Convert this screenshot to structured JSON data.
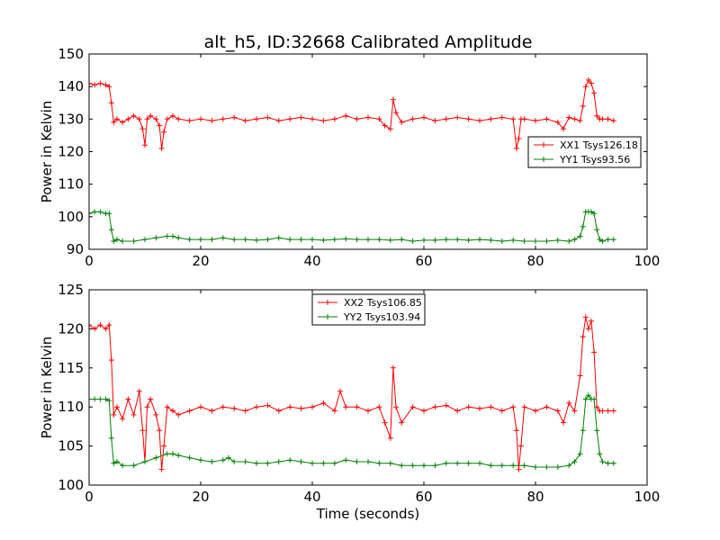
{
  "title": "alt_h5, ID:32668 Calibrated Amplitude",
  "chart_data": [
    {
      "type": "line",
      "title": "alt_h5, ID:32668 Calibrated Amplitude",
      "xlabel": "",
      "ylabel": "Power in Kelvin",
      "xlim": [
        0,
        100
      ],
      "ylim": [
        90,
        150
      ],
      "xticks": [
        0,
        20,
        40,
        60,
        80,
        100
      ],
      "yticks": [
        90,
        100,
        110,
        120,
        130,
        140,
        150
      ],
      "grid": false,
      "legend_position": "center-right",
      "marker": "+",
      "series": [
        {
          "name": "XX1 Tsys126.18",
          "color": "#ff0000",
          "x": [
            0,
            1,
            2,
            3,
            3.6,
            4,
            4.4,
            5,
            6,
            7,
            8,
            9,
            9.6,
            10,
            10.4,
            11,
            12,
            12.6,
            13,
            13.4,
            14,
            15,
            16,
            18,
            20,
            22,
            24,
            26,
            28,
            30,
            32,
            34,
            36,
            38,
            40,
            42,
            44,
            46,
            48,
            50,
            52,
            53,
            54,
            54.5,
            55,
            56,
            58,
            60,
            62,
            64,
            66,
            68,
            70,
            72,
            74,
            76,
            76.6,
            77,
            77.4,
            78,
            80,
            82,
            84,
            85,
            86,
            87,
            88,
            88.5,
            89,
            89.5,
            90,
            90.5,
            91,
            91.5,
            92,
            93,
            94
          ],
          "values": [
            141,
            140.5,
            141,
            140.5,
            140,
            135,
            129,
            130,
            129,
            130,
            131,
            130,
            127,
            122,
            130,
            131,
            130,
            128,
            121,
            126,
            130,
            131,
            130,
            129.5,
            130,
            129.5,
            130,
            130.5,
            129.5,
            130,
            130.5,
            129.5,
            130,
            130.5,
            130,
            129.5,
            130,
            131,
            130,
            130.5,
            130,
            128,
            127,
            136,
            132,
            129,
            130,
            130.5,
            129.5,
            130,
            130.5,
            130,
            129.5,
            130,
            130.5,
            130,
            121,
            124,
            130,
            130,
            129.5,
            130,
            129,
            127,
            130.5,
            130,
            129.5,
            134,
            140,
            142,
            141,
            138,
            131,
            130,
            130,
            130,
            129.5
          ]
        },
        {
          "name": "YY1 Tsys93.56",
          "color": "#008000",
          "x": [
            0,
            1,
            2,
            3,
            3.6,
            4,
            4.4,
            5,
            6,
            8,
            10,
            12,
            14,
            15,
            16,
            18,
            20,
            22,
            24,
            26,
            28,
            30,
            32,
            34,
            36,
            38,
            40,
            42,
            44,
            46,
            48,
            50,
            52,
            54,
            56,
            58,
            60,
            62,
            64,
            66,
            68,
            70,
            72,
            74,
            76,
            78,
            80,
            82,
            84,
            86,
            87,
            88,
            88.5,
            89,
            89.5,
            90,
            90.5,
            91,
            91.5,
            92,
            93,
            94
          ],
          "values": [
            101,
            101.5,
            101.5,
            101,
            101,
            96,
            92.5,
            93,
            92.5,
            92.5,
            93,
            93.5,
            94,
            94,
            93.5,
            93,
            93,
            93,
            93.5,
            93,
            93,
            92.8,
            93,
            93.5,
            93,
            93,
            93,
            92.8,
            93,
            93.2,
            93,
            93,
            93,
            92.8,
            93,
            92.5,
            92.8,
            92.8,
            93,
            93,
            92.8,
            93,
            92.8,
            92.5,
            92.8,
            92.5,
            92.5,
            92.5,
            92.8,
            92.5,
            93,
            94,
            97,
            101.5,
            101.5,
            101.5,
            101,
            96,
            93,
            92.5,
            93,
            93
          ]
        }
      ]
    },
    {
      "type": "line",
      "title": "",
      "xlabel": "Time (seconds)",
      "ylabel": "Power in Kelvin",
      "xlim": [
        0,
        100
      ],
      "ylim": [
        100,
        125
      ],
      "xticks": [
        0,
        20,
        40,
        60,
        80,
        100
      ],
      "yticks": [
        100,
        105,
        110,
        115,
        120,
        125
      ],
      "grid": false,
      "legend_position": "top-center",
      "marker": "+",
      "series": [
        {
          "name": "XX2 Tsys106.85",
          "color": "#ff0000",
          "x": [
            0,
            1,
            2,
            3,
            3.6,
            4,
            4.4,
            5,
            6,
            7,
            8,
            9,
            9.6,
            10,
            10.4,
            11,
            12,
            12.6,
            13,
            13.4,
            14,
            15,
            16,
            18,
            20,
            22,
            24,
            26,
            28,
            30,
            32,
            34,
            36,
            38,
            40,
            42,
            44,
            45,
            46,
            48,
            50,
            52,
            53,
            54,
            54.5,
            55,
            56,
            58,
            60,
            62,
            64,
            66,
            68,
            70,
            72,
            74,
            76,
            76.6,
            77,
            77.4,
            78,
            80,
            82,
            84,
            85,
            86,
            87,
            88,
            88.5,
            89,
            89.5,
            90,
            90.5,
            91,
            91.5,
            92,
            93,
            94
          ],
          "values": [
            120.5,
            120,
            120.5,
            120,
            120.5,
            116,
            109,
            110,
            108.5,
            111,
            109,
            112,
            107,
            103,
            110,
            111,
            109,
            107,
            102,
            105,
            110,
            109.5,
            109,
            109.5,
            110,
            109.5,
            110,
            109.8,
            109.5,
            110,
            110.2,
            109.5,
            110,
            109.8,
            110,
            110.5,
            109.5,
            112,
            110,
            110,
            109.5,
            110,
            108,
            106,
            115,
            110,
            108,
            110,
            109.5,
            110,
            110.2,
            109.5,
            110,
            109.8,
            110,
            109.5,
            110,
            107,
            102,
            105,
            110,
            109.5,
            110,
            109.5,
            108,
            110.5,
            109.5,
            114,
            119,
            121.5,
            120,
            121,
            117,
            110,
            109.5,
            109.5,
            109.5,
            109.5
          ]
        },
        {
          "name": "YY2 Tsys103.94",
          "color": "#008000",
          "x": [
            0,
            1,
            2,
            3,
            3.6,
            4,
            4.4,
            5,
            6,
            8,
            10,
            12,
            14,
            15,
            16,
            18,
            20,
            22,
            24,
            25,
            26,
            28,
            30,
            32,
            34,
            36,
            38,
            40,
            42,
            44,
            46,
            48,
            50,
            52,
            54,
            56,
            58,
            60,
            62,
            64,
            66,
            68,
            70,
            72,
            74,
            76,
            78,
            80,
            82,
            84,
            86,
            87,
            88,
            88.5,
            89,
            89.5,
            90,
            90.5,
            91,
            91.5,
            92,
            93,
            94
          ],
          "values": [
            111,
            111,
            111,
            111,
            110.8,
            106,
            102.8,
            103,
            102.5,
            102.5,
            103,
            103.5,
            104,
            104,
            103.8,
            103.5,
            103.2,
            103,
            103.2,
            103.5,
            103,
            103,
            102.8,
            102.8,
            103,
            103.2,
            103,
            102.8,
            102.8,
            102.8,
            103.2,
            103,
            103,
            102.8,
            102.8,
            102.5,
            102.5,
            102.5,
            102.5,
            102.8,
            102.8,
            102.8,
            102.8,
            102.5,
            102.5,
            102.5,
            102.5,
            102.3,
            102.3,
            102.3,
            102.5,
            103,
            104,
            107,
            111,
            111.5,
            111,
            111,
            107,
            104,
            103,
            102.8,
            102.8
          ]
        }
      ]
    }
  ]
}
